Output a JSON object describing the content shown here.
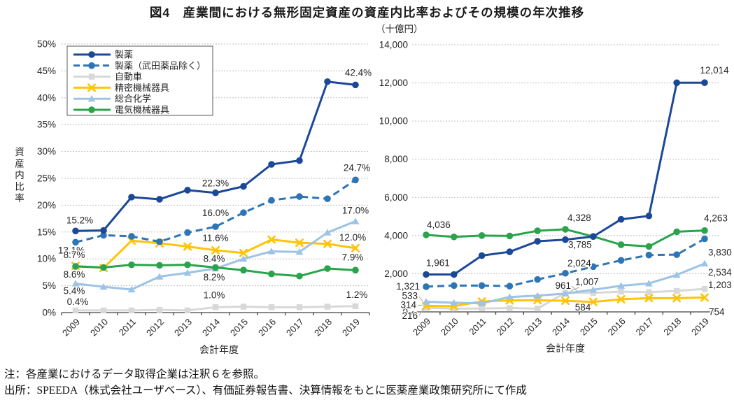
{
  "title": "図4　産業間における無形固定資産の資産内比率およびその規模の年次推移",
  "notes": {
    "note1": "注：各産業におけるデータ取得企業は注釈６を参照。",
    "note2": "出所：SPEEDA（株式会社ユーザベース）、有価証券報告書、決算情報をもとに医薬産業政策研究所にて作成"
  },
  "colors": {
    "pharma": "#1B4998",
    "pharma_ex_takeda": "#2E75B6",
    "automobile": "#D8D8D8",
    "precision": "#FFC408",
    "chemistry": "#9DC3E6",
    "electrical": "#2AA34B",
    "gridline": "#BFBFBF",
    "axis": "#404040",
    "leader": "#A6A6A6"
  },
  "chart_data": [
    {
      "id": "ratio",
      "type": "line",
      "title": "",
      "xlabel": "会計年度",
      "ylabel": "資産内比率",
      "ylim": [
        0,
        50
      ],
      "grid": true,
      "legend_position": "top-left",
      "categories": [
        "2009",
        "2010",
        "2011",
        "2012",
        "2013",
        "2014",
        "2015",
        "2016",
        "2017",
        "2018",
        "2019"
      ],
      "yticks": [
        {
          "v": 0,
          "label": "0%"
        },
        {
          "v": 5,
          "label": "5%"
        },
        {
          "v": 10,
          "label": "10%"
        },
        {
          "v": 15,
          "label": "15%"
        },
        {
          "v": 20,
          "label": "20%"
        },
        {
          "v": 25,
          "label": "25%"
        },
        {
          "v": 30,
          "label": "30%"
        },
        {
          "v": 35,
          "label": "35%"
        },
        {
          "v": 40,
          "label": "40%"
        },
        {
          "v": 45,
          "label": "45%"
        },
        {
          "v": 50,
          "label": "50%"
        }
      ],
      "series": [
        {
          "key": "pharma",
          "name": "製薬",
          "color": "#1B4998",
          "dash": "solid",
          "marker": "circle",
          "values": [
            15.2,
            15.3,
            21.5,
            21.1,
            22.8,
            22.3,
            23.5,
            27.6,
            28.3,
            43.0,
            42.4
          ],
          "point_labels": [
            {
              "i": 0,
              "text": "15.2%",
              "dx": 6,
              "dy": -11,
              "anchor": "middle"
            },
            {
              "i": 5,
              "text": "22.3%",
              "dx": 0,
              "dy": -9,
              "anchor": "middle"
            },
            {
              "i": 10,
              "text": "42.4%",
              "dx": 4,
              "dy": -13,
              "anchor": "middle"
            }
          ]
        },
        {
          "key": "pharma-ex-takeda",
          "name": "製薬（武田薬品除く）",
          "color": "#2E75B6",
          "dash": "dashed",
          "marker": "circle",
          "values": [
            13.1,
            14.4,
            14.2,
            13.2,
            14.9,
            16.0,
            18.6,
            20.9,
            21.6,
            21.2,
            24.7
          ],
          "point_labels": [
            {
              "i": 0,
              "text": "13.1%",
              "dx": -6,
              "dy": 16,
              "anchor": "middle"
            },
            {
              "i": 5,
              "text": "16.0%",
              "dx": 0,
              "dy": -15,
              "anchor": "middle"
            },
            {
              "i": 10,
              "text": "24.7%",
              "dx": 2,
              "dy": -13,
              "anchor": "middle"
            }
          ]
        },
        {
          "key": "automobile",
          "name": "自動車",
          "color": "#D8D8D8",
          "dash": "solid",
          "marker": "square",
          "values": [
            0.4,
            0.4,
            0.4,
            0.5,
            0.4,
            1.0,
            1.1,
            1.0,
            1.0,
            1.1,
            1.2
          ],
          "point_labels": [
            {
              "i": 0,
              "text": "0.4%",
              "dx": 3,
              "dy": -8,
              "anchor": "middle"
            },
            {
              "i": 5,
              "text": "1.0%",
              "dx": -2,
              "dy": -13,
              "anchor": "middle"
            },
            {
              "i": 10,
              "text": "1.2%",
              "dx": 2,
              "dy": -12,
              "anchor": "middle"
            }
          ]
        },
        {
          "key": "precision",
          "name": "精密機械器具",
          "color": "#FFC408",
          "dash": "solid",
          "marker": "x",
          "values": [
            8.7,
            8.3,
            13.4,
            12.9,
            12.3,
            11.6,
            11.1,
            13.6,
            13.0,
            12.8,
            12.0
          ],
          "point_labels": [
            {
              "i": 0,
              "text": "8.7%",
              "dx": -2,
              "dy": -11,
              "anchor": "middle"
            },
            {
              "i": 5,
              "text": "11.6%",
              "dx": 0,
              "dy": -13,
              "anchor": "middle"
            },
            {
              "i": 10,
              "text": "12.0%",
              "dx": -4,
              "dy": -11,
              "anchor": "middle"
            }
          ]
        },
        {
          "key": "chemistry",
          "name": "総合化学",
          "color": "#9DC3E6",
          "dash": "solid",
          "marker": "triangle",
          "values": [
            5.4,
            4.8,
            4.3,
            6.7,
            7.4,
            8.2,
            10.0,
            11.4,
            11.3,
            14.9,
            17.0
          ],
          "point_labels": [
            {
              "i": 0,
              "text": "5.4%",
              "dx": -2,
              "dy": 15,
              "anchor": "middle"
            },
            {
              "i": 5,
              "text": "8.2%",
              "dx": -2,
              "dy": 17,
              "anchor": "middle"
            },
            {
              "i": 10,
              "text": "17.0%",
              "dx": 0,
              "dy": -11,
              "anchor": "middle"
            }
          ]
        },
        {
          "key": "electrical",
          "name": "電気機械器具",
          "color": "#2AA34B",
          "dash": "solid",
          "marker": "circle",
          "values": [
            8.6,
            8.4,
            8.9,
            8.8,
            8.9,
            8.4,
            7.9,
            7.2,
            6.8,
            8.2,
            7.9
          ],
          "point_labels": [
            {
              "i": 0,
              "text": "8.6%",
              "dx": -2,
              "dy": 16,
              "anchor": "middle"
            },
            {
              "i": 5,
              "text": "8.4%",
              "dx": -2,
              "dy": -8,
              "anchor": "middle"
            },
            {
              "i": 10,
              "text": "7.9%",
              "dx": -4,
              "dy": -14,
              "anchor": "middle"
            }
          ]
        }
      ]
    },
    {
      "id": "scale",
      "type": "line",
      "title": "",
      "xlabel": "会計年度",
      "ylabel": "（十億円）",
      "ylim": [
        0,
        14000
      ],
      "grid": true,
      "legend_position": "none",
      "categories": [
        "2009",
        "2010",
        "2011",
        "2012",
        "2013",
        "2014",
        "2015",
        "2016",
        "2017",
        "2018",
        "2019"
      ],
      "yticks": [
        {
          "v": 0,
          "label": "0"
        },
        {
          "v": 2000,
          "label": "2,000"
        },
        {
          "v": 4000,
          "label": "4,000"
        },
        {
          "v": 6000,
          "label": "6,000"
        },
        {
          "v": 8000,
          "label": "8,000"
        },
        {
          "v": 10000,
          "label": "10,000"
        },
        {
          "v": 12000,
          "label": "12,000"
        },
        {
          "v": 14000,
          "label": "14,000"
        }
      ],
      "series": [
        {
          "key": "pharma",
          "name": "製薬",
          "color": "#1B4998",
          "dash": "solid",
          "marker": "circle",
          "values": [
            1961,
            1960,
            2950,
            3150,
            3700,
            3785,
            3950,
            4850,
            5030,
            12010,
            12014
          ],
          "point_labels": [
            {
              "i": 0,
              "text": "1,961",
              "dx": 0,
              "dy": -12,
              "anchor": "start"
            },
            {
              "i": 5,
              "text": "3,785",
              "dx": 4,
              "dy": 12,
              "anchor": "start"
            },
            {
              "i": 10,
              "text": "12,014",
              "dx": 14,
              "dy": -13,
              "anchor": "middle"
            }
          ]
        },
        {
          "key": "pharma-ex-takeda",
          "name": "製薬（武田薬品除く）",
          "color": "#2E75B6",
          "dash": "dashed",
          "marker": "circle",
          "values": [
            1321,
            1380,
            1380,
            1350,
            1700,
            2024,
            2370,
            2700,
            2980,
            3000,
            3830
          ],
          "point_labels": [
            {
              "i": 0,
              "text": "1,321",
              "dx": -9,
              "dy": 4,
              "anchor": "end"
            },
            {
              "i": 5,
              "text": "2,024",
              "dx": 3,
              "dy": -10,
              "anchor": "start"
            },
            {
              "i": 10,
              "text": "3,830",
              "dx": 5,
              "dy": 24,
              "anchor": "start"
            }
          ]
        },
        {
          "key": "automobile",
          "name": "自動車",
          "color": "#D8D8D8",
          "dash": "solid",
          "marker": "square",
          "values": [
            216,
            170,
            180,
            200,
            170,
            1007,
            1000,
            1060,
            1030,
            1100,
            1203
          ],
          "point_labels": [
            {
              "i": 0,
              "text": "216",
              "dx": -12,
              "dy": 16,
              "anchor": "end",
              "leader": [
                2,
                -5,
                -4,
                1
              ]
            },
            {
              "i": 5,
              "text": "1,007",
              "dx": 14,
              "dy": -11,
              "anchor": "start",
              "leader": [
                8,
                3,
                7,
                -2
              ]
            },
            {
              "i": 10,
              "text": "1,203",
              "dx": 5,
              "dy": -1,
              "anchor": "start"
            }
          ]
        },
        {
          "key": "precision",
          "name": "精密機械器具",
          "color": "#FFC408",
          "dash": "solid",
          "marker": "x",
          "values": [
            314,
            300,
            550,
            600,
            610,
            584,
            520,
            660,
            720,
            720,
            754
          ],
          "point_labels": [
            {
              "i": 0,
              "text": "314",
              "dx": -14,
              "dy": 3,
              "anchor": "end",
              "leader": [
                2,
                -4,
                -5,
                -1
              ]
            },
            {
              "i": 5,
              "text": "584",
              "dx": 25,
              "dy": 14,
              "anchor": "middle"
            },
            {
              "i": 10,
              "text": "754",
              "dx": 6,
              "dy": 25,
              "anchor": "start"
            }
          ]
        },
        {
          "key": "chemistry",
          "name": "総合化学",
          "color": "#9DC3E6",
          "dash": "solid",
          "marker": "triangle",
          "values": [
            533,
            480,
            450,
            780,
            850,
            961,
            1160,
            1370,
            1490,
            1940,
            2534
          ],
          "point_labels": [
            {
              "i": 0,
              "text": "533",
              "dx": -12,
              "dy": -4,
              "anchor": "end",
              "leader": [
                2,
                -3,
                -5,
                -1
              ]
            },
            {
              "i": 5,
              "text": "961",
              "dx": 8,
              "dy": -7,
              "anchor": "end",
              "leader": [
                1,
                -4,
                17,
                -3
              ]
            },
            {
              "i": 10,
              "text": "2,534",
              "dx": 5,
              "dy": 17,
              "anchor": "start"
            }
          ]
        },
        {
          "key": "electrical",
          "name": "電気機械器具",
          "color": "#2AA34B",
          "dash": "solid",
          "marker": "circle",
          "values": [
            4036,
            3930,
            4000,
            3980,
            4250,
            4328,
            3950,
            3520,
            3430,
            4200,
            4263
          ],
          "point_labels": [
            {
              "i": 0,
              "text": "4,036",
              "dx": 1,
              "dy": -10,
              "anchor": "start"
            },
            {
              "i": 5,
              "text": "4,328",
              "dx": 3,
              "dy": -12,
              "anchor": "start"
            },
            {
              "i": 10,
              "text": "4,263",
              "dx": 16,
              "dy": -13,
              "anchor": "middle"
            }
          ]
        }
      ]
    }
  ]
}
